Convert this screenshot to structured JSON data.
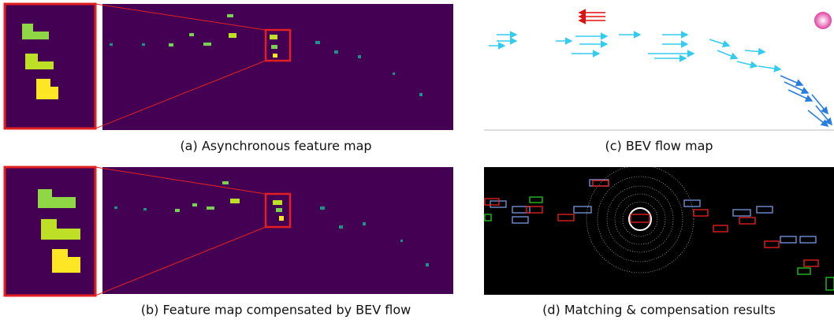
{
  "panels": [
    {
      "caption": "(a) Asynchronous feature map"
    },
    {
      "caption": "(b) Feature map compensated by BEV flow"
    },
    {
      "caption": "(c) BEV flow map"
    },
    {
      "caption": "(d) Matching & compensation results"
    }
  ]
}
